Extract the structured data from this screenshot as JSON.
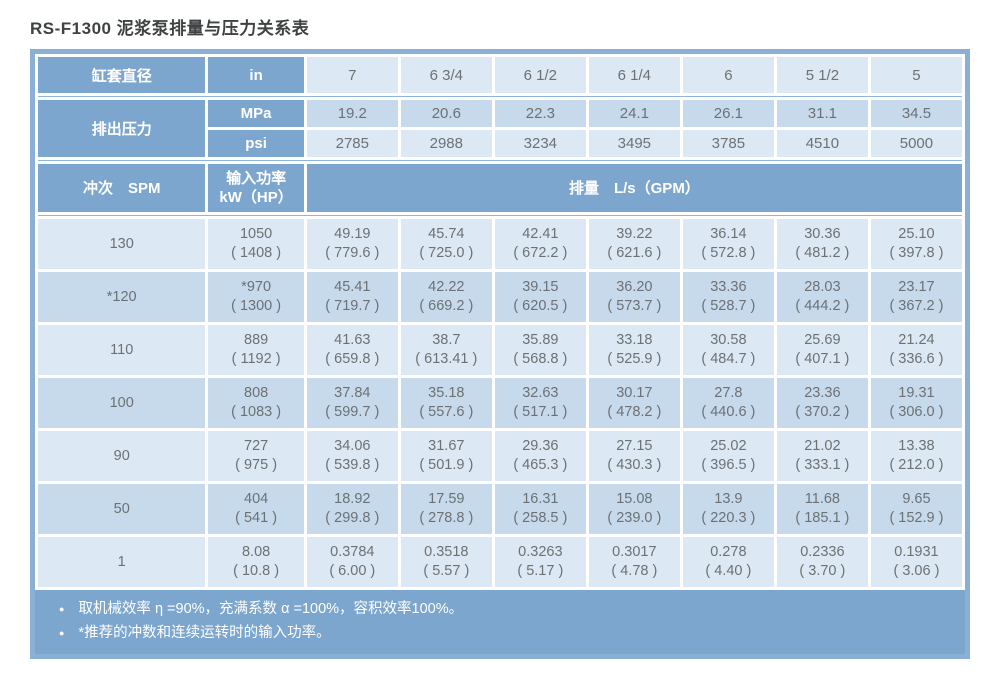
{
  "title": "RS-F1300 泥浆泵排量与压力关系表",
  "colors": {
    "header_blue": "#7ca6ce",
    "cell_light": "#dce8f3",
    "cell_medium": "#c6daeb",
    "outer_border": "#8ab0d4",
    "text_gray": "#6d7174"
  },
  "table": {
    "header": {
      "liner_label": "缸套直径",
      "liner_unit": "in",
      "pressure_label": "排出压力",
      "mpa_label": "MPa",
      "psi_label": "psi",
      "spm_label": "冲次　SPM",
      "power_label_line1": "输入功率",
      "power_label_line2": "kW（HP）",
      "flow_label": "排量　L/s（GPM）"
    },
    "diameters": [
      "7",
      "6 3/4",
      "6 1/2",
      "6 1/4",
      "6",
      "5 1/2",
      "5"
    ],
    "mpa": [
      "19.2",
      "20.6",
      "22.3",
      "24.1",
      "26.1",
      "31.1",
      "34.5"
    ],
    "psi": [
      "2785",
      "2988",
      "3234",
      "3495",
      "3785",
      "4510",
      "5000"
    ],
    "rows": [
      {
        "spm": "130",
        "power": {
          "v": "1050",
          "g": "( 1408 )"
        },
        "flows": [
          {
            "v": "49.19",
            "g": "( 779.6 )"
          },
          {
            "v": "45.74",
            "g": "( 725.0 )"
          },
          {
            "v": "42.41",
            "g": "( 672.2 )"
          },
          {
            "v": "39.22",
            "g": "( 621.6 )"
          },
          {
            "v": "36.14",
            "g": "( 572.8 )"
          },
          {
            "v": "30.36",
            "g": "( 481.2 )"
          },
          {
            "v": "25.10",
            "g": "( 397.8 )"
          }
        ]
      },
      {
        "spm": "*120",
        "power": {
          "v": "*970",
          "g": "( 1300 )"
        },
        "flows": [
          {
            "v": "45.41",
            "g": "( 719.7 )"
          },
          {
            "v": "42.22",
            "g": "( 669.2 )"
          },
          {
            "v": "39.15",
            "g": "( 620.5 )"
          },
          {
            "v": "36.20",
            "g": "( 573.7 )"
          },
          {
            "v": "33.36",
            "g": "( 528.7 )"
          },
          {
            "v": "28.03",
            "g": "( 444.2 )"
          },
          {
            "v": "23.17",
            "g": "( 367.2 )"
          }
        ]
      },
      {
        "spm": "110",
        "power": {
          "v": "889",
          "g": "( 1192 )"
        },
        "flows": [
          {
            "v": "41.63",
            "g": "( 659.8 )"
          },
          {
            "v": "38.7",
            "g": "( 613.41 )"
          },
          {
            "v": "35.89",
            "g": "( 568.8 )"
          },
          {
            "v": "33.18",
            "g": "( 525.9 )"
          },
          {
            "v": "30.58",
            "g": "( 484.7 )"
          },
          {
            "v": "25.69",
            "g": "( 407.1 )"
          },
          {
            "v": "21.24",
            "g": "( 336.6 )"
          }
        ]
      },
      {
        "spm": "100",
        "power": {
          "v": "808",
          "g": "( 1083 )"
        },
        "flows": [
          {
            "v": "37.84",
            "g": "( 599.7 )"
          },
          {
            "v": "35.18",
            "g": "( 557.6 )"
          },
          {
            "v": "32.63",
            "g": "( 517.1 )"
          },
          {
            "v": "30.17",
            "g": "( 478.2 )"
          },
          {
            "v": "27.8",
            "g": "( 440.6 )"
          },
          {
            "v": "23.36",
            "g": "( 370.2 )"
          },
          {
            "v": "19.31",
            "g": "( 306.0 )"
          }
        ]
      },
      {
        "spm": "90",
        "power": {
          "v": "727",
          "g": "( 975 )"
        },
        "flows": [
          {
            "v": "34.06",
            "g": "( 539.8 )"
          },
          {
            "v": "31.67",
            "g": "( 501.9 )"
          },
          {
            "v": "29.36",
            "g": "( 465.3 )"
          },
          {
            "v": "27.15",
            "g": "( 430.3 )"
          },
          {
            "v": "25.02",
            "g": "( 396.5 )"
          },
          {
            "v": "21.02",
            "g": "( 333.1 )"
          },
          {
            "v": "13.38",
            "g": "( 212.0 )"
          }
        ]
      },
      {
        "spm": "50",
        "power": {
          "v": "404",
          "g": "( 541 )"
        },
        "flows": [
          {
            "v": "18.92",
            "g": "( 299.8 )"
          },
          {
            "v": "17.59",
            "g": "( 278.8 )"
          },
          {
            "v": "16.31",
            "g": "( 258.5 )"
          },
          {
            "v": "15.08",
            "g": "( 239.0 )"
          },
          {
            "v": "13.9",
            "g": "( 220.3 )"
          },
          {
            "v": "11.68",
            "g": "( 185.1 )"
          },
          {
            "v": "9.65",
            "g": "( 152.9 )"
          }
        ]
      },
      {
        "spm": "1",
        "power": {
          "v": "8.08",
          "g": "( 10.8 )"
        },
        "flows": [
          {
            "v": "0.3784",
            "g": "( 6.00 )"
          },
          {
            "v": "0.3518",
            "g": "( 5.57 )"
          },
          {
            "v": "0.3263",
            "g": "( 5.17 )"
          },
          {
            "v": "0.3017",
            "g": "( 4.78 )"
          },
          {
            "v": "0.278",
            "g": "( 4.40 )"
          },
          {
            "v": "0.2336",
            "g": "( 3.70 )"
          },
          {
            "v": "0.1931",
            "g": "( 3.06 )"
          }
        ]
      }
    ]
  },
  "notes": [
    "取机械效率 η =90%，充满系数 α =100%，容积效率100%。",
    "*推荐的冲数和连续运转时的输入功率。"
  ]
}
